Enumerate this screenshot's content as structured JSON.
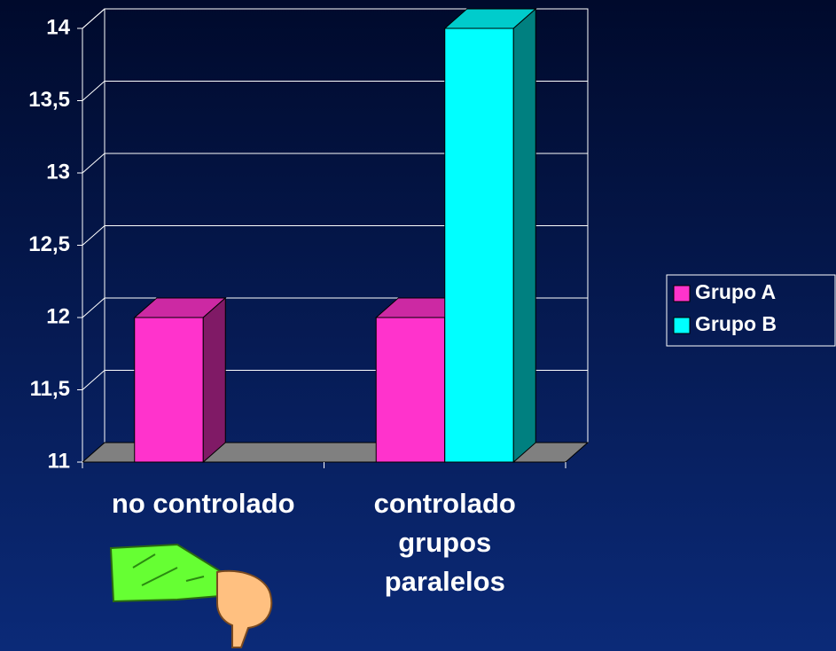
{
  "chart_data": {
    "type": "bar3d",
    "categories": [
      "no controlado",
      "controlado\ngrupos\nparalelos"
    ],
    "series": [
      {
        "name": "Grupo A",
        "color": "#ff33cc",
        "values": [
          12,
          12
        ]
      },
      {
        "name": "Grupo B",
        "color": "#00ffff",
        "values": [
          null,
          14
        ]
      }
    ],
    "ylim": [
      11,
      14
    ],
    "yticks": [
      11,
      {
        "value": 11.5,
        "label": "11,5"
      },
      12,
      {
        "value": 12.5,
        "label": "12,5"
      },
      13,
      {
        "value": 13.5,
        "label": "13,5"
      },
      14
    ],
    "grid": true,
    "legend": "right"
  }
}
